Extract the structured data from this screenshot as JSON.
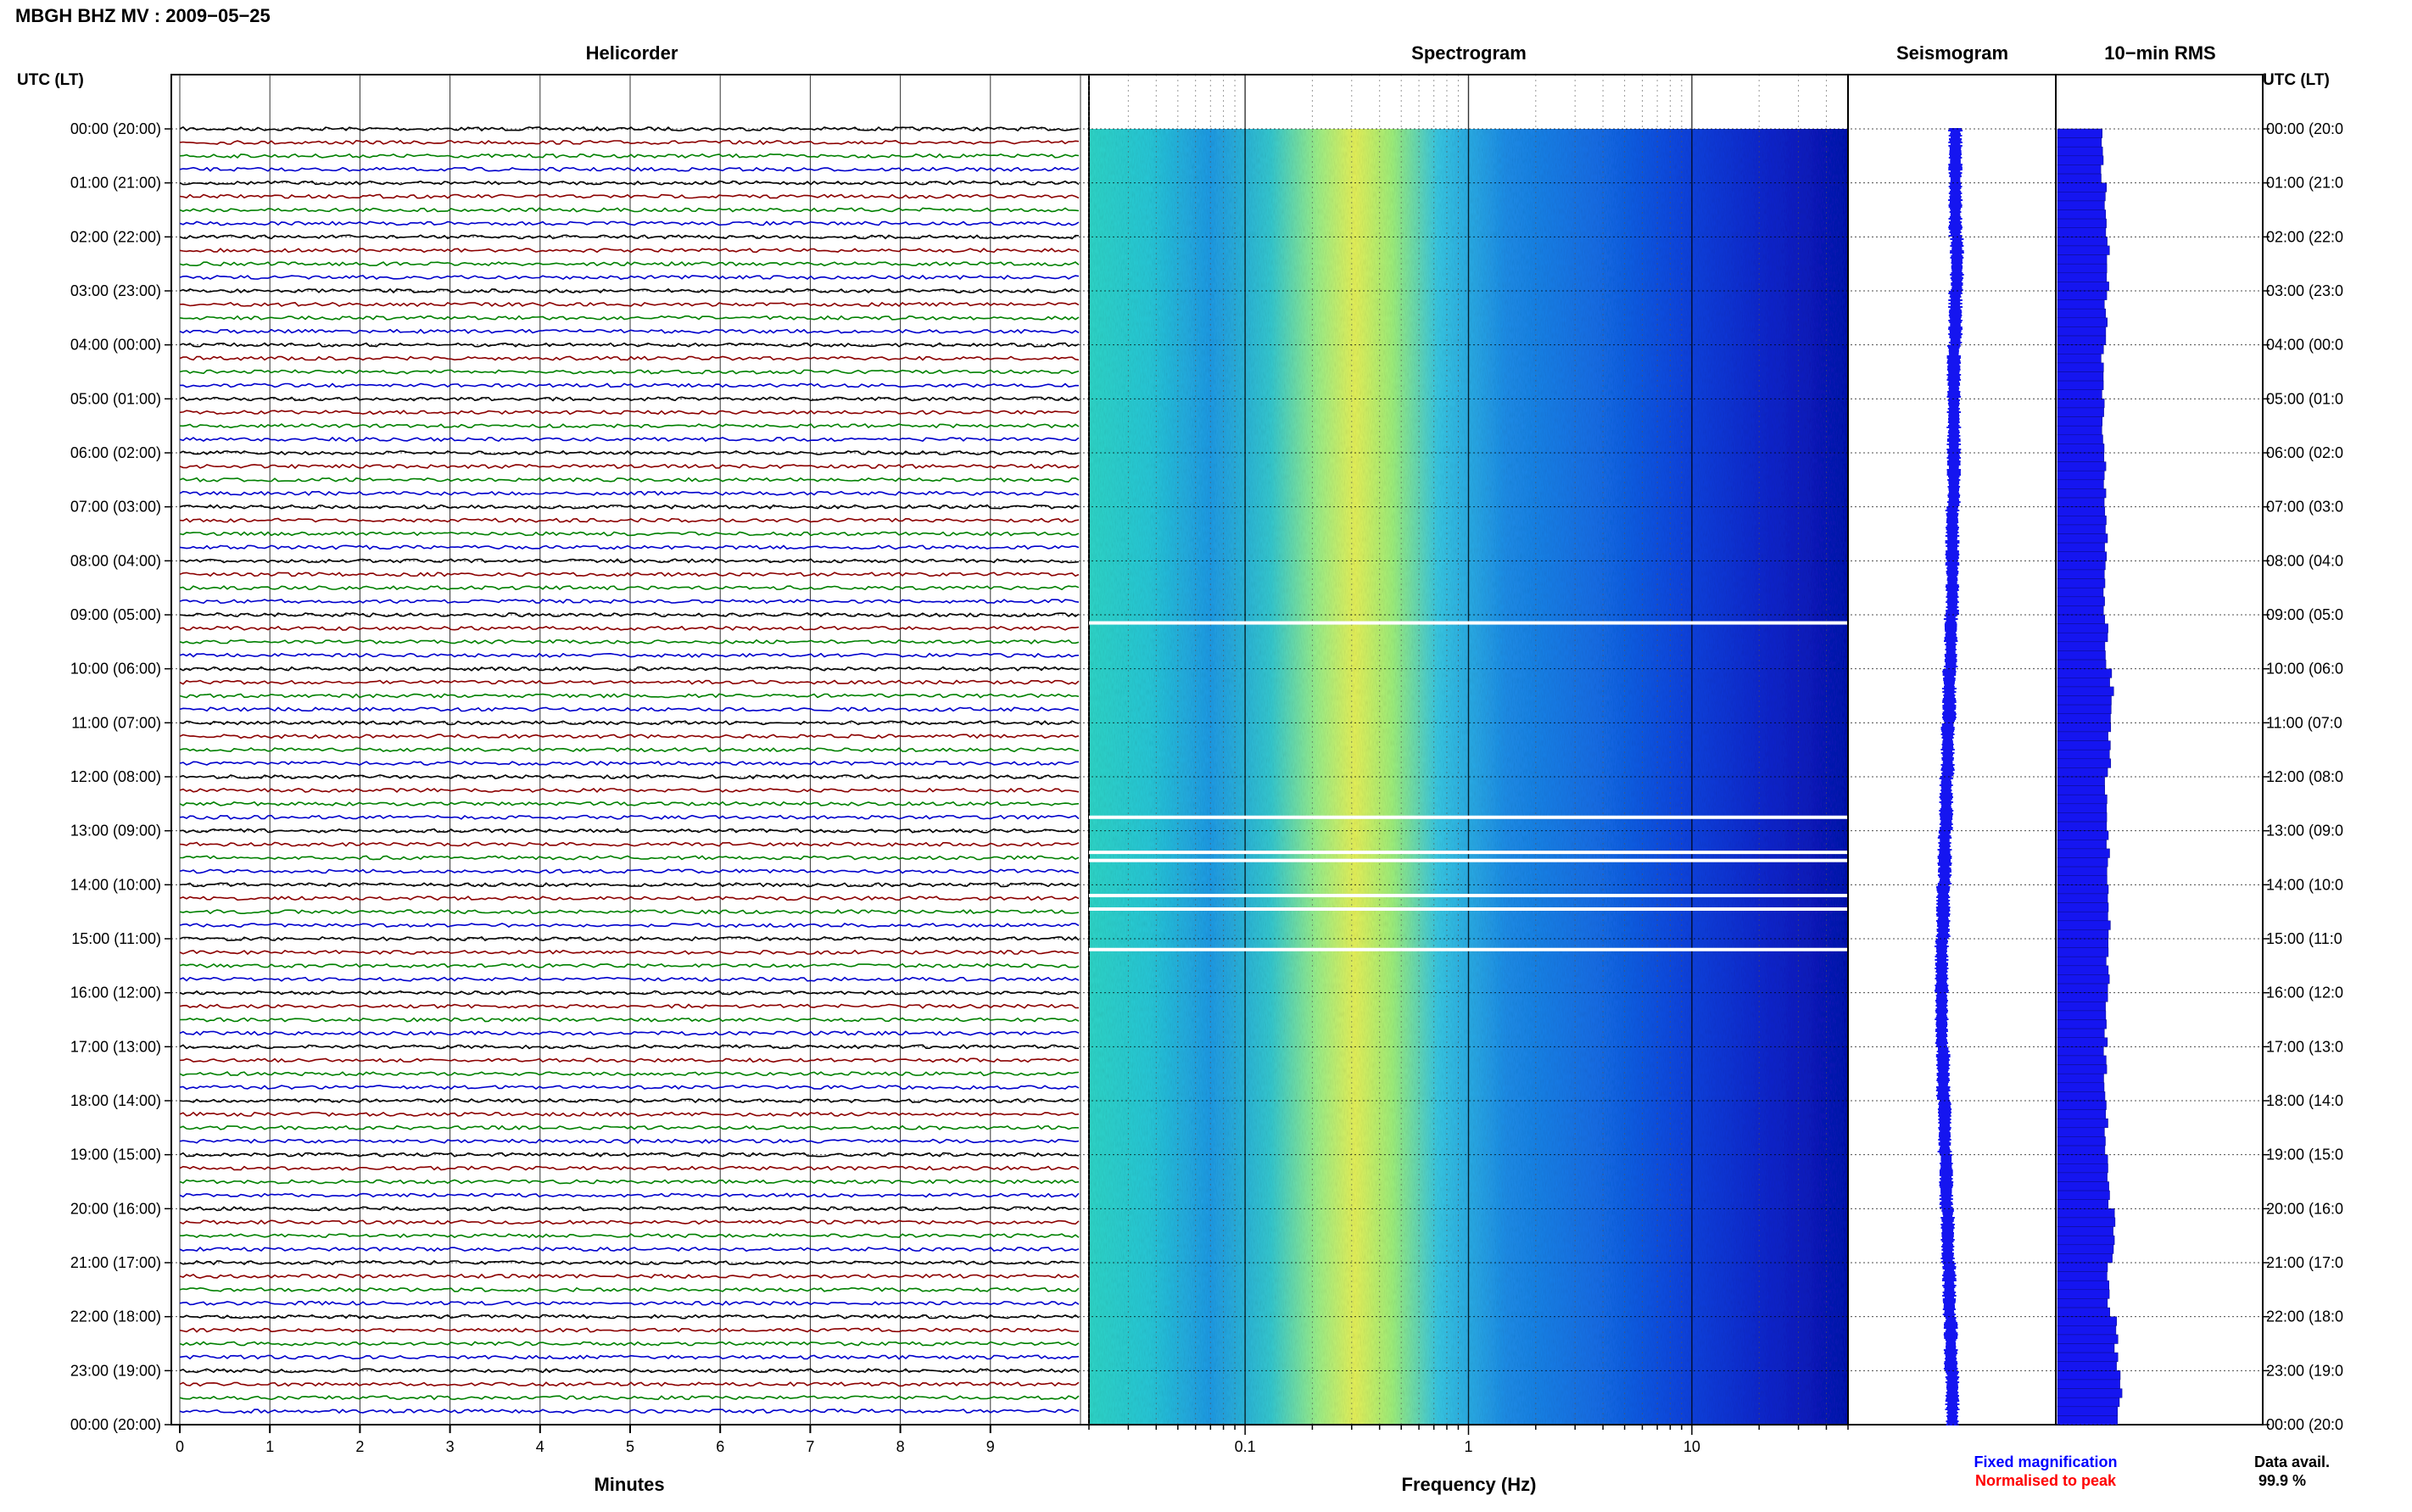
{
  "header": {
    "title": "MBGH BHZ MV : 2009−05−25",
    "utc_left": "UTC (LT)",
    "utc_right": "UTC (LT)"
  },
  "panels": {
    "helicorder": "Helicorder",
    "spectrogram": "Spectrogram",
    "seismogram": "Seismogram",
    "rms": "10−min RMS"
  },
  "axes": {
    "minutes_label": "Minutes",
    "frequency_label": "Frequency (Hz)",
    "minute_ticks": [
      "0",
      "1",
      "2",
      "3",
      "4",
      "5",
      "6",
      "7",
      "8",
      "9"
    ],
    "freq_ticks": [
      "0.1",
      "1",
      "10"
    ]
  },
  "legend": {
    "fixed": "Fixed magnification",
    "normalised": "Normalised to peak",
    "fixed_color": "#0000ff",
    "normalised_color": "#ff0000"
  },
  "footer": {
    "data_avail_label": "Data avail.",
    "data_avail_value": "99.9 %"
  },
  "colors": {
    "trace_cycle": [
      "#000000",
      "#8b0000",
      "#008000",
      "#0000cc"
    ],
    "bar": "#1515f0"
  },
  "chart_data": {
    "type": "heatmap",
    "hour_labels_left": [
      "00:00 (20:00)",
      "01:00 (21:00)",
      "02:00 (22:00)",
      "03:00 (23:00)",
      "04:00 (00:00)",
      "05:00 (01:00)",
      "06:00 (02:00)",
      "07:00 (03:00)",
      "08:00 (04:00)",
      "09:00 (05:00)",
      "10:00 (06:00)",
      "11:00 (07:00)",
      "12:00 (08:00)",
      "13:00 (09:00)",
      "14:00 (10:00)",
      "15:00 (11:00)",
      "16:00 (12:00)",
      "17:00 (13:00)",
      "18:00 (14:00)",
      "19:00 (15:00)",
      "20:00 (16:00)",
      "21:00 (17:00)",
      "22:00 (18:00)",
      "23:00 (19:00)",
      "00:00 (20:00)"
    ],
    "hour_labels_right": [
      "00:00 (20:0",
      "01:00 (21:0",
      "02:00 (22:0",
      "03:00 (23:0",
      "04:00 (00:0",
      "05:00 (01:0",
      "06:00 (02:0",
      "07:00 (03:0",
      "08:00 (04:0",
      "09:00 (05:0",
      "10:00 (06:0",
      "11:00 (07:0",
      "12:00 (08:0",
      "13:00 (09:0",
      "14:00 (10:0",
      "15:00 (11:0",
      "16:00 (12:0",
      "17:00 (13:0",
      "18:00 (14:0",
      "19:00 (15:0",
      "20:00 (16:0",
      "21:00 (17:0",
      "22:00 (18:0",
      "23:00 (19:0",
      "00:00 (20:0"
    ],
    "x_minutes_range": [
      0,
      10
    ],
    "freq_range_hz": [
      0.02,
      50
    ],
    "freq_scale": "log",
    "spectrogram_gaps_hours": [
      9.15,
      12.75,
      13.4,
      13.55,
      14.2,
      14.45,
      15.2
    ],
    "rms_hourly": [
      0.33,
      0.35,
      0.37,
      0.36,
      0.33,
      0.34,
      0.35,
      0.36,
      0.35,
      0.36,
      0.4,
      0.38,
      0.36,
      0.37,
      0.38,
      0.37,
      0.36,
      0.35,
      0.36,
      0.37,
      0.41,
      0.38,
      0.43,
      0.46
    ],
    "seismogram_offset_hourly": [
      0.02,
      0.02,
      0.03,
      0.02,
      0.01,
      0.01,
      0.01,
      0.0,
      0.0,
      -0.01,
      -0.02,
      -0.03,
      -0.04,
      -0.05,
      -0.06,
      -0.07,
      -0.07,
      -0.06,
      -0.05,
      -0.04,
      -0.03,
      -0.02,
      -0.01,
      0.0
    ]
  }
}
